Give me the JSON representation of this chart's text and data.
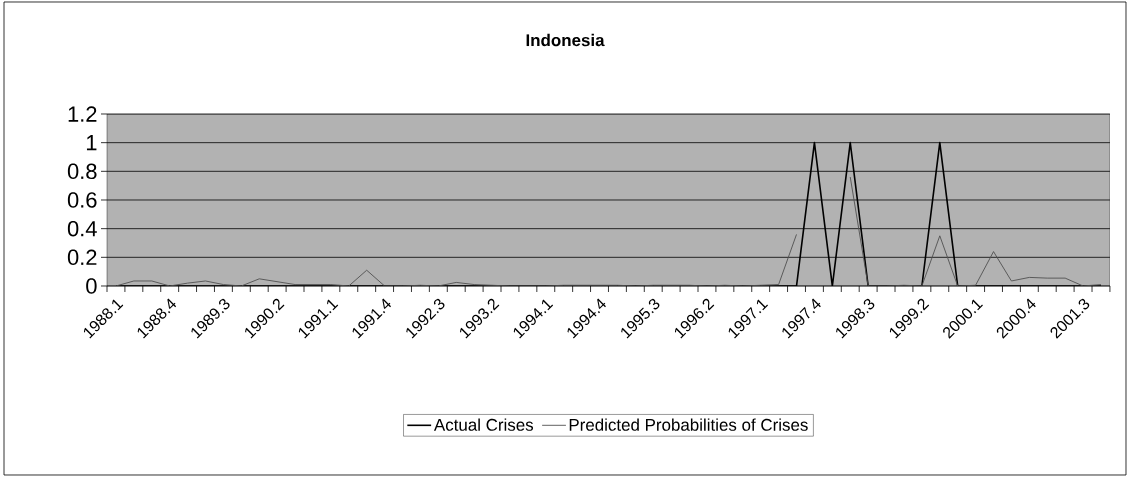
{
  "chart_data": {
    "type": "line",
    "title": "Indonesia",
    "categories": [
      "1988.1",
      null,
      null,
      "1988.4",
      null,
      null,
      "1989.3",
      null,
      null,
      "1990.2",
      null,
      null,
      "1991.1",
      null,
      null,
      "1991.4",
      null,
      null,
      "1992.3",
      null,
      null,
      "1993.2",
      null,
      null,
      "1994.1",
      null,
      null,
      "1994.4",
      null,
      null,
      "1995.3",
      null,
      null,
      "1996.2",
      null,
      null,
      "1997.1",
      null,
      null,
      "1997.4",
      null,
      null,
      "1998.3",
      null,
      null,
      "1999.2",
      null,
      null,
      "2000.1",
      null,
      null,
      "2000.4",
      null,
      null,
      "2001.3",
      null
    ],
    "series": [
      {
        "name": "Actual Crises",
        "color": "#000000",
        "values": [
          0,
          0,
          0,
          0,
          0,
          0,
          0,
          0,
          0,
          0,
          0,
          0,
          0,
          0,
          0,
          0,
          0,
          0,
          0,
          0,
          0,
          0,
          0,
          0,
          0,
          0,
          0,
          0,
          0,
          0,
          0,
          0,
          0,
          0,
          0,
          0,
          0,
          0,
          0,
          1,
          0,
          1,
          0,
          0,
          0,
          0,
          1,
          0,
          0,
          0,
          0,
          0,
          0,
          0,
          0,
          0
        ]
      },
      {
        "name": "Predicted Probabilities of Crises",
        "color": "#505050",
        "values": [
          0,
          0.035,
          0.035,
          0,
          0.02,
          0.035,
          0.01,
          0,
          0.05,
          0.03,
          0.01,
          0.01,
          0.01,
          0,
          0.11,
          0,
          0,
          0.005,
          0,
          0.025,
          0.01,
          0.005,
          0,
          0,
          0,
          0.005,
          0.005,
          0.005,
          0.005,
          0,
          0.005,
          0.005,
          0.005,
          0,
          0.005,
          0,
          0.005,
          0.01,
          0.36,
          null,
          null,
          0.76,
          0,
          0,
          0.005,
          0,
          0.35,
          0,
          0.005,
          0.24,
          0.035,
          0.06,
          0.055,
          0.055,
          0,
          0.01
        ]
      }
    ],
    "ylim": [
      0,
      1.2
    ],
    "yticks": [
      0,
      0.2,
      0.4,
      0.6,
      0.8,
      1,
      1.2
    ],
    "grid": "y",
    "legend": "bottom",
    "marker": "none",
    "line_style": "solid"
  }
}
